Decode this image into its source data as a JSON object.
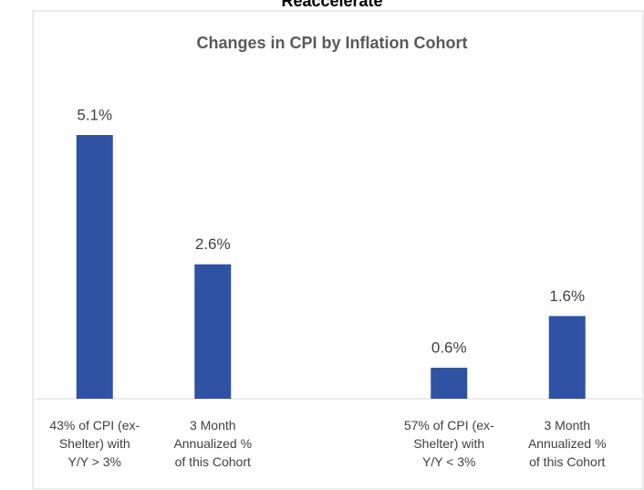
{
  "chart_data": {
    "type": "bar",
    "header": "Reaccelerate",
    "title": "Changes in CPI by Inflation Cohort",
    "categories": [
      "43% of CPI (ex-\nShelter) with\nY/Y > 3%",
      "3 Month\nAnnualized %\nof this Cohort",
      null,
      "57% of CPI (ex-\nShelter) with\nY/Y < 3%",
      "3 Month\nAnnualized %\nof this Cohort"
    ],
    "values": [
      5.1,
      2.6,
      null,
      0.6,
      1.6
    ],
    "value_labels": [
      "5.1%",
      "2.6%",
      null,
      "0.6%",
      "1.6%"
    ],
    "color": "#2f52a3"
  }
}
